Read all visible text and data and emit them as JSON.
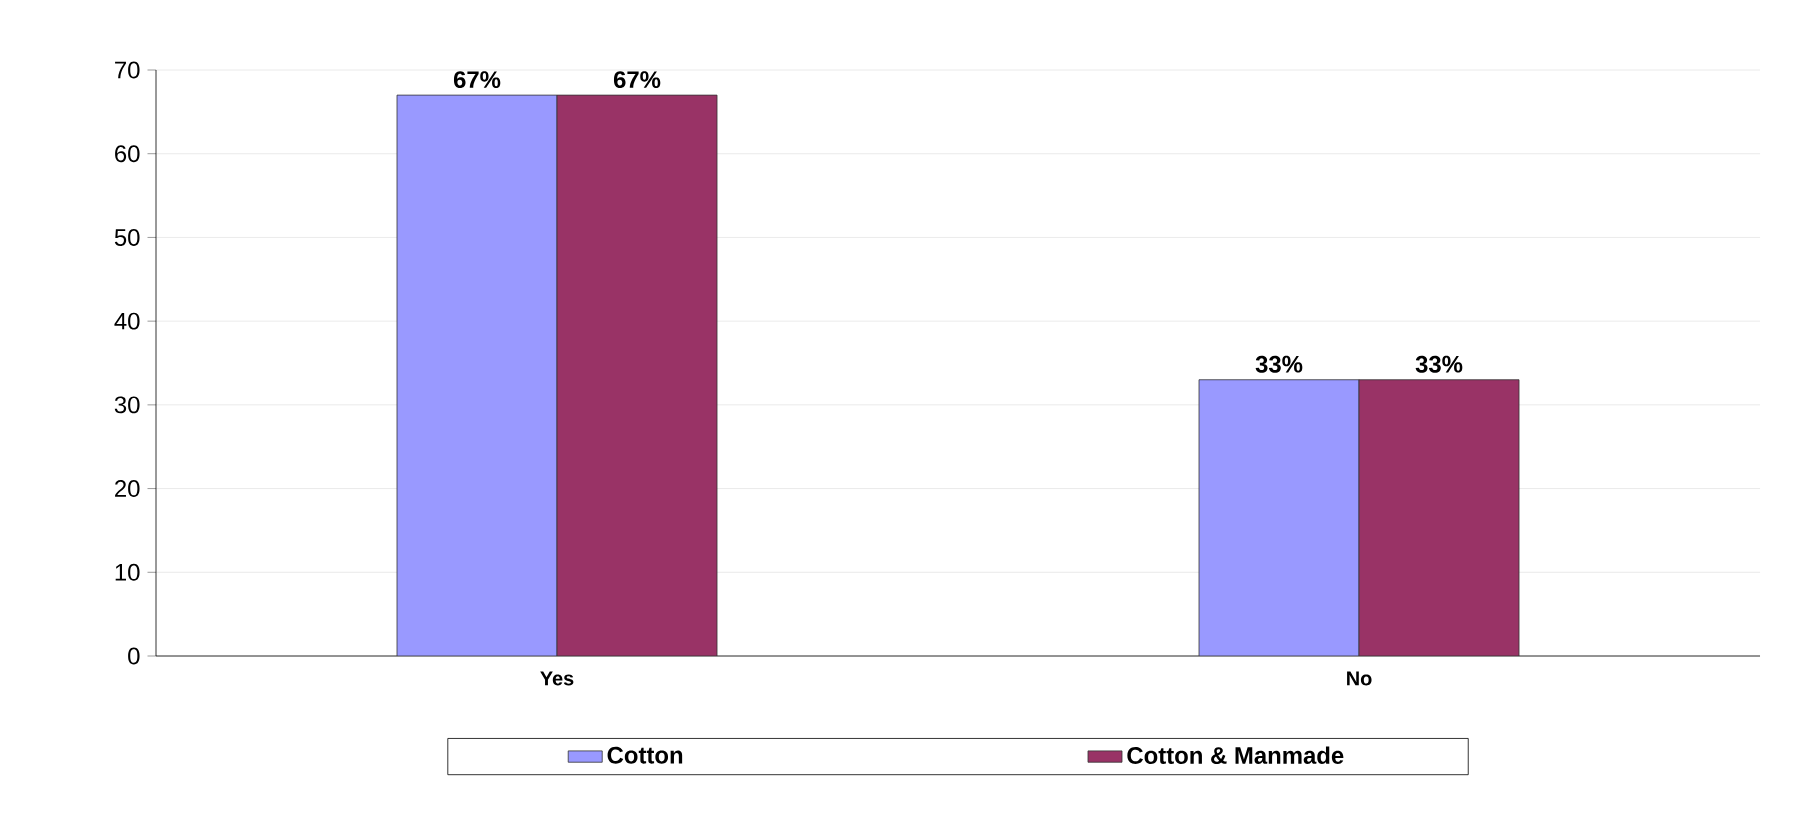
{
  "chart_data": {
    "type": "bar",
    "categories": [
      "Yes",
      "No"
    ],
    "series": [
      {
        "name": "Cotton",
        "color": "#9999ff",
        "values": [
          67,
          33
        ],
        "value_labels": [
          "67%",
          "33%"
        ]
      },
      {
        "name": "Cotton & Manmade",
        "color": "#993366",
        "values": [
          67,
          33
        ],
        "value_labels": [
          "67%",
          "33%"
        ]
      }
    ],
    "ylim": [
      0,
      70
    ],
    "yticks": [
      0,
      10,
      20,
      30,
      40,
      50,
      60,
      70
    ],
    "grid": "y",
    "legend": "bottom"
  }
}
